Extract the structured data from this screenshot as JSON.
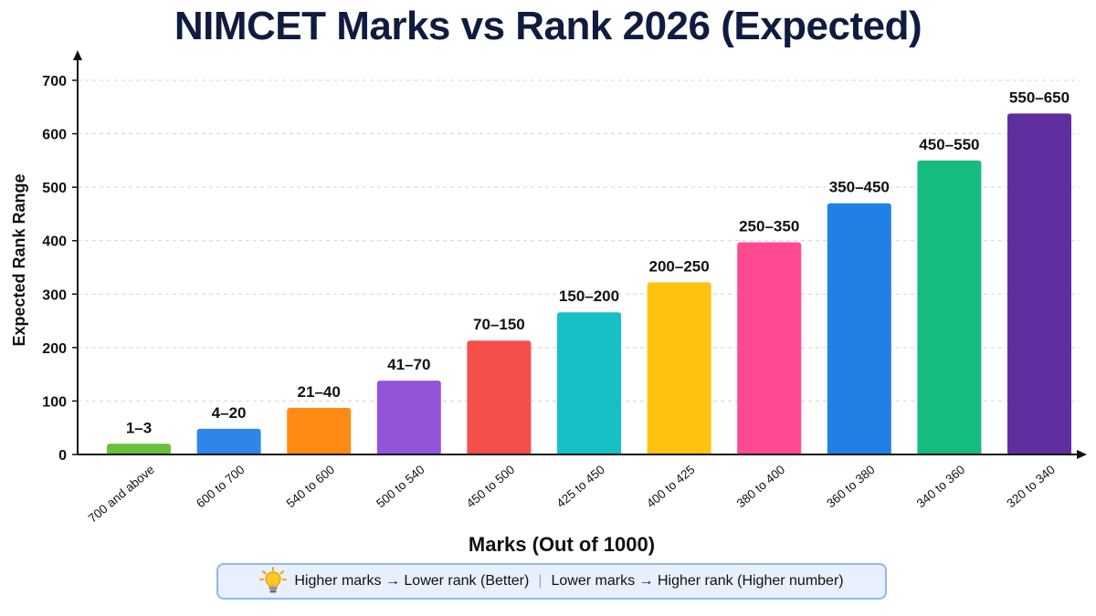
{
  "colors": {
    "title": "#0f1c3f",
    "bars": [
      "#6abf3a",
      "#2f86e8",
      "#ff8b14",
      "#9454d9",
      "#f54f4c",
      "#15c0c6",
      "#ffc210",
      "#ff4a93",
      "#2180e3",
      "#16bb80",
      "#5f2fa0"
    ],
    "note_background": "#e7f0fc",
    "note_border": "#8fb8ec"
  },
  "note": {
    "icon": "lightbulb-icon",
    "left": "Higher marks → Lower rank (Better)",
    "separator": "|",
    "right": "Lower marks → Higher rank (Higher number)"
  },
  "chart_data": {
    "type": "bar",
    "title": "NIMCET Marks vs Rank 2026 (Expected)",
    "xlabel": "Marks (Out of 1000)",
    "ylabel": "Expected Rank Range",
    "ylim": [
      0,
      700
    ],
    "yticks": [
      0,
      100,
      200,
      300,
      400,
      500,
      600,
      700
    ],
    "grid": true,
    "categories": [
      "700 and above",
      "600 to 700",
      "540 to 600",
      "500 to 540",
      "450 to 500",
      "425 to 450",
      "400 to 425",
      "380 to 400",
      "360 to 380",
      "340 to 360",
      "320 to 340"
    ],
    "values": [
      20,
      48,
      87,
      138,
      213,
      266,
      322,
      397,
      470,
      550,
      638
    ],
    "data_labels": [
      "1–3",
      "4–20",
      "21–40",
      "41–70",
      "70–150",
      "150–200",
      "200–250",
      "250–350",
      "350–450",
      "450–550",
      "550–650"
    ]
  }
}
